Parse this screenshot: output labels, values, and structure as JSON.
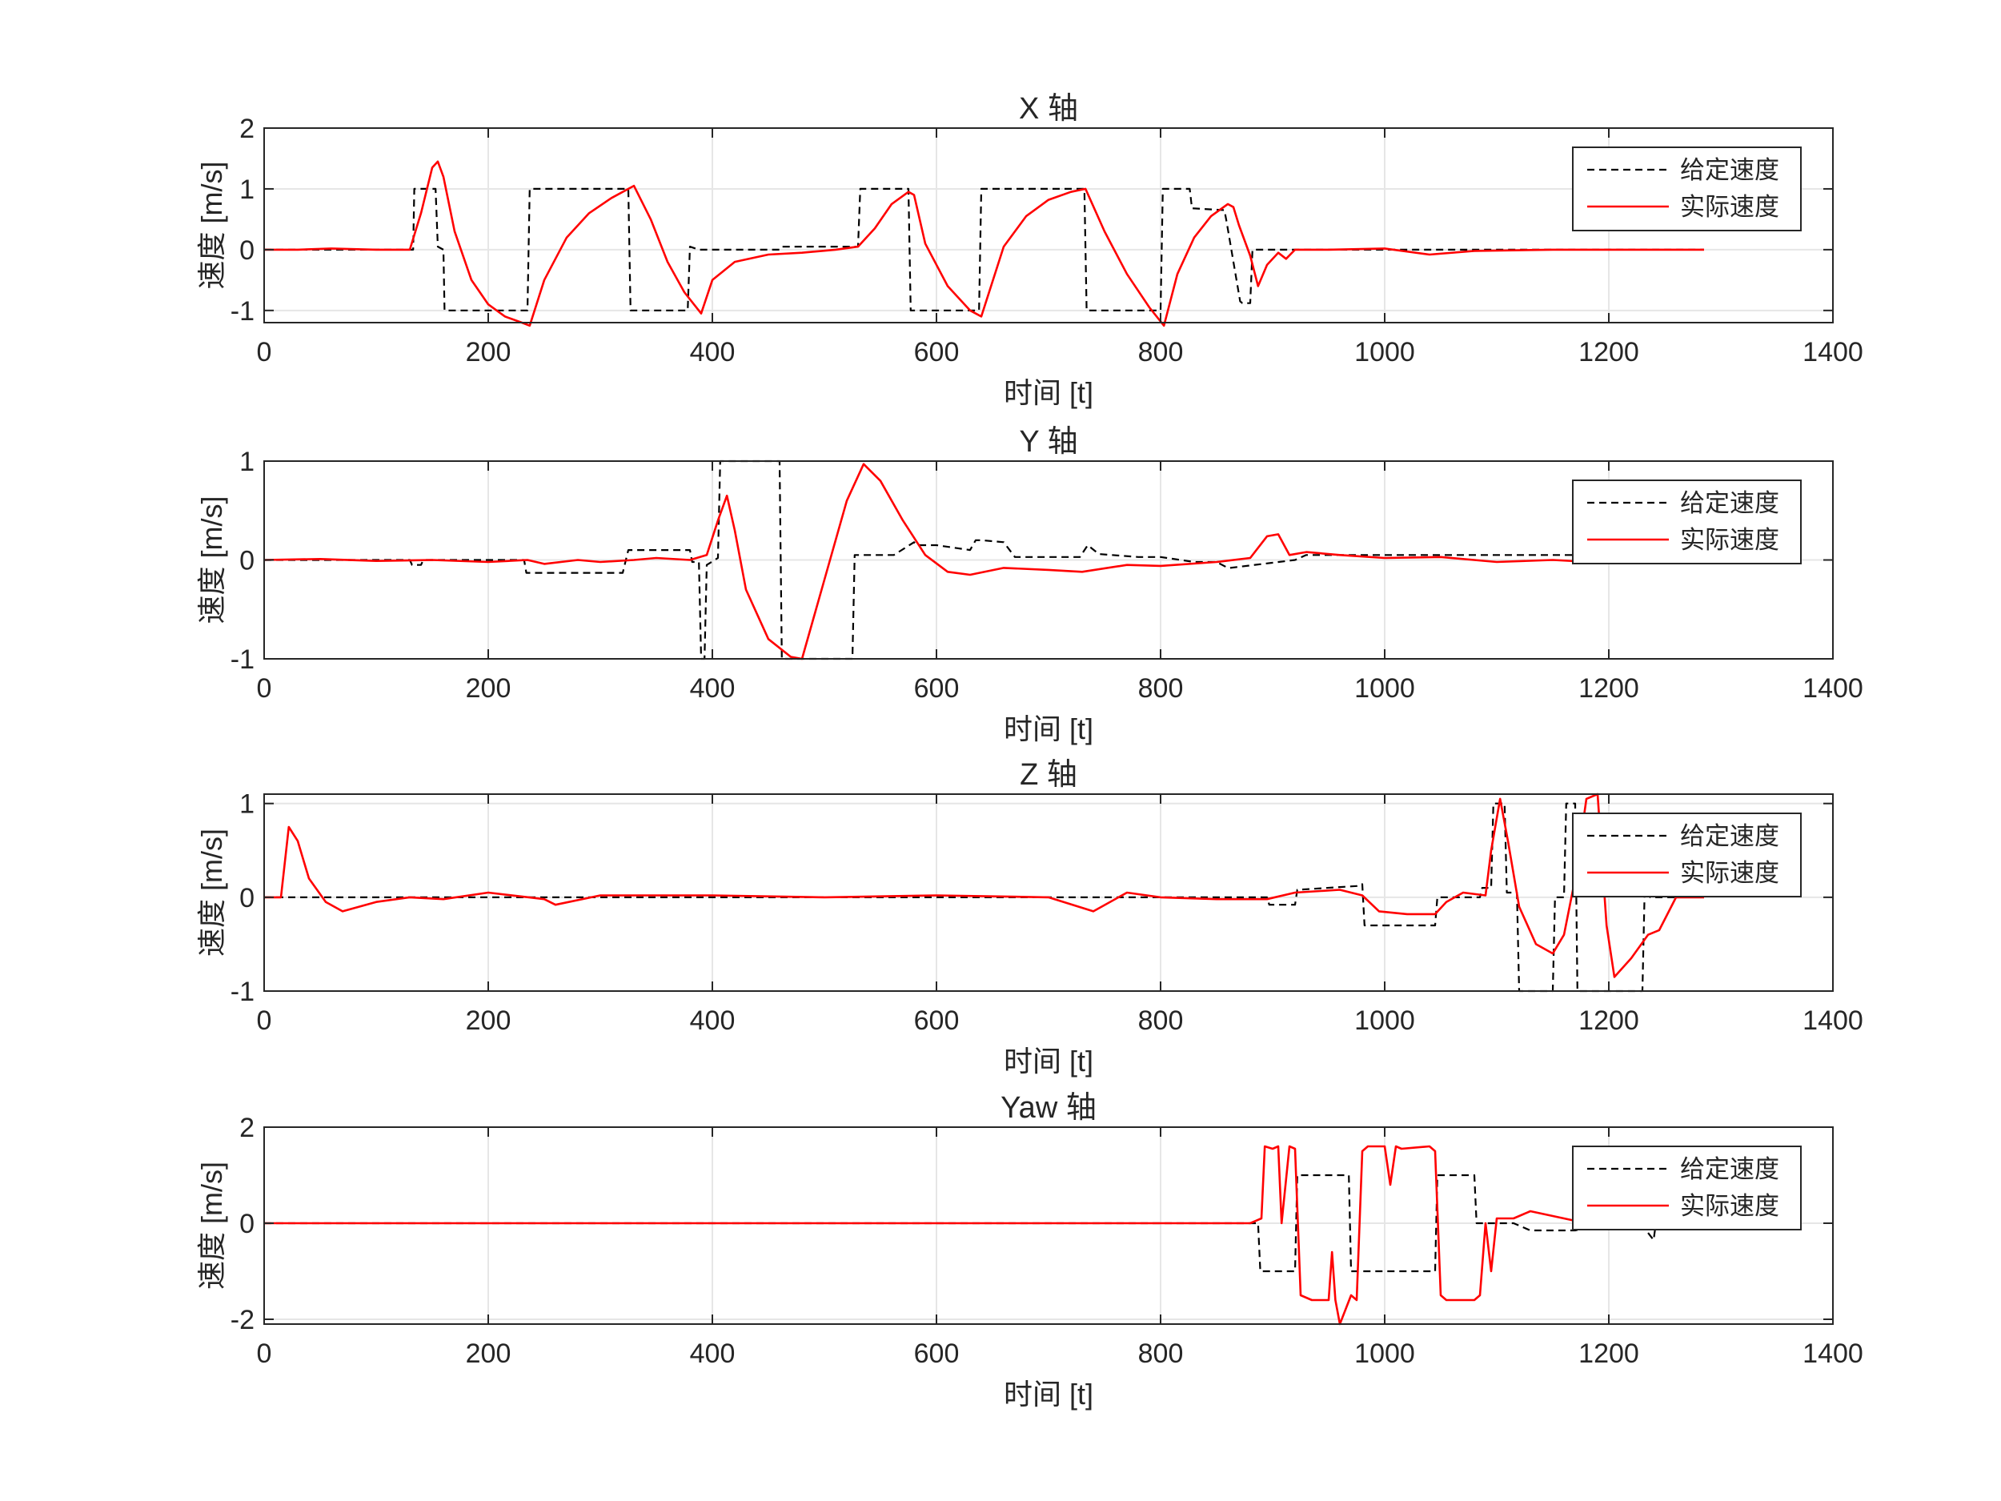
{
  "colors": {
    "reference": "#000000",
    "actual": "#ff0000",
    "grid": "#e6e6e6",
    "axes": "#262626",
    "background": "#ffffff"
  },
  "chart_data": [
    {
      "type": "line",
      "title": "X 轴",
      "xlabel": "时间 [t]",
      "ylabel": "速度 [m/s]",
      "xlim": [
        0,
        1400
      ],
      "ylim": [
        -1.2,
        2
      ],
      "xticks": [
        0,
        200,
        400,
        600,
        800,
        1000,
        1200,
        1400
      ],
      "yticks": [
        -1,
        0,
        1,
        2
      ],
      "grid": true,
      "legend_position": "top-right",
      "series": [
        {
          "name": "给定速度",
          "style": "dashed",
          "x": [
            0,
            133,
            134,
            153,
            155,
            160,
            161,
            235,
            237,
            325,
            327,
            378,
            380,
            388,
            390,
            460,
            462,
            530,
            532,
            575,
            577,
            638,
            640,
            732,
            734,
            800,
            802,
            826,
            828,
            857,
            859,
            871,
            873,
            880,
            882,
            1285
          ],
          "y": [
            0,
            0,
            1,
            1,
            0.05,
            0,
            -1,
            -1,
            1,
            1,
            -1,
            -1,
            0.05,
            0,
            0,
            0,
            0.05,
            0.05,
            1,
            1,
            -1,
            -1,
            1,
            1,
            -1,
            -1,
            1,
            1,
            0.68,
            0.65,
            0.45,
            -0.85,
            -0.88,
            -0.88,
            0,
            0
          ]
        },
        {
          "name": "实际速度",
          "style": "solid",
          "x": [
            0,
            30,
            60,
            100,
            130,
            140,
            150,
            155,
            160,
            170,
            185,
            200,
            215,
            230,
            237,
            250,
            270,
            290,
            310,
            330,
            345,
            360,
            375,
            390,
            400,
            420,
            450,
            480,
            510,
            530,
            545,
            560,
            575,
            580,
            590,
            610,
            630,
            640,
            660,
            680,
            700,
            720,
            733,
            750,
            770,
            790,
            803,
            815,
            830,
            845,
            860,
            865,
            870,
            880,
            887,
            895,
            905,
            912,
            920,
            950,
            1000,
            1040,
            1080,
            1150,
            1200,
            1285
          ],
          "y": [
            0,
            0,
            0.02,
            0,
            0,
            0.6,
            1.35,
            1.45,
            1.2,
            0.3,
            -0.5,
            -0.9,
            -1.1,
            -1.2,
            -1.25,
            -0.5,
            0.2,
            0.6,
            0.85,
            1.05,
            0.5,
            -0.2,
            -0.7,
            -1.05,
            -0.5,
            -0.2,
            -0.08,
            -0.05,
            0,
            0.05,
            0.35,
            0.75,
            0.95,
            0.9,
            0.1,
            -0.6,
            -1.0,
            -1.1,
            0.05,
            0.55,
            0.82,
            0.95,
            1.0,
            0.3,
            -0.4,
            -0.95,
            -1.25,
            -0.4,
            0.2,
            0.55,
            0.75,
            0.7,
            0.4,
            -0.1,
            -0.6,
            -0.25,
            -0.05,
            -0.15,
            0,
            0,
            0.02,
            -0.08,
            -0.02,
            0,
            0,
            0
          ]
        }
      ]
    },
    {
      "type": "line",
      "title": "Y 轴",
      "xlabel": "时间 [t]",
      "ylabel": "速度 [m/s]",
      "xlim": [
        0,
        1400
      ],
      "ylim": [
        -1,
        1
      ],
      "xticks": [
        0,
        200,
        400,
        600,
        800,
        1000,
        1200,
        1400
      ],
      "yticks": [
        -1,
        0,
        1
      ],
      "grid": true,
      "legend_position": "top-right",
      "series": [
        {
          "name": "给定速度",
          "style": "dashed",
          "x": [
            0,
            130,
            132,
            140,
            142,
            232,
            234,
            320,
            325,
            380,
            382,
            388,
            390,
            393,
            395,
            405,
            407,
            460,
            462,
            525,
            527,
            560,
            562,
            580,
            583,
            600,
            630,
            635,
            640,
            660,
            670,
            700,
            728,
            735,
            745,
            780,
            800,
            830,
            850,
            860,
            862,
            920,
            930,
            1285
          ],
          "y": [
            0,
            0,
            -0.05,
            -0.05,
            0,
            0,
            -0.13,
            -0.13,
            0.1,
            0.1,
            -0.02,
            -0.02,
            -1,
            -1,
            -0.05,
            0.02,
            1,
            1,
            -1,
            -1,
            0.05,
            0.05,
            0.05,
            0.18,
            0.15,
            0.15,
            0.1,
            0.2,
            0.2,
            0.18,
            0.03,
            0.03,
            0.03,
            0.15,
            0.06,
            0.03,
            0.03,
            -0.02,
            -0.02,
            -0.08,
            -0.08,
            0,
            0.05,
            0.05
          ]
        },
        {
          "name": "实际速度",
          "style": "solid",
          "x": [
            0,
            50,
            100,
            150,
            200,
            235,
            250,
            280,
            300,
            330,
            350,
            380,
            395,
            405,
            413,
            420,
            430,
            450,
            470,
            480,
            500,
            520,
            535,
            550,
            570,
            590,
            610,
            630,
            660,
            700,
            730,
            770,
            800,
            850,
            880,
            895,
            905,
            915,
            930,
            960,
            1000,
            1050,
            1100,
            1150,
            1200,
            1250,
            1285
          ],
          "y": [
            0,
            0.01,
            -0.01,
            0,
            -0.02,
            0,
            -0.04,
            0,
            -0.02,
            0,
            0.02,
            0,
            0.05,
            0.4,
            0.65,
            0.3,
            -0.3,
            -0.8,
            -0.98,
            -1.0,
            -0.2,
            0.6,
            0.97,
            0.8,
            0.4,
            0.05,
            -0.12,
            -0.15,
            -0.08,
            -0.1,
            -0.12,
            -0.05,
            -0.06,
            -0.02,
            0.02,
            0.24,
            0.26,
            0.05,
            0.08,
            0.05,
            0.02,
            0.03,
            -0.02,
            0,
            -0.03,
            -0.02,
            0
          ]
        }
      ]
    },
    {
      "type": "line",
      "title": "Z 轴",
      "xlabel": "时间 [t]",
      "ylabel": "速度 [m/s]",
      "xlim": [
        0,
        1400
      ],
      "ylim": [
        -1,
        1.1
      ],
      "xticks": [
        0,
        200,
        400,
        600,
        800,
        1000,
        1200,
        1400
      ],
      "yticks": [
        -1,
        0,
        1
      ],
      "grid": true,
      "legend_position": "top-right",
      "series": [
        {
          "name": "给定速度",
          "style": "dashed",
          "x": [
            0,
            895,
            897,
            920,
            922,
            975,
            977,
            980,
            982,
            1045,
            1047,
            1058,
            1060,
            1085,
            1087,
            1095,
            1097,
            1107,
            1109,
            1118,
            1120,
            1150,
            1152,
            1160,
            1162,
            1170,
            1172,
            1230,
            1232,
            1235,
            1237,
            1285
          ],
          "y": [
            0,
            0,
            -0.08,
            -0.08,
            0.08,
            0.12,
            0.14,
            0.14,
            -0.3,
            -0.3,
            0,
            0,
            0,
            0,
            0.1,
            0.1,
            1,
            1,
            0.05,
            0.05,
            -1,
            -1,
            0,
            0,
            1,
            1,
            -1,
            -1,
            0.08,
            0.08,
            0,
            0
          ]
        },
        {
          "name": "实际速度",
          "style": "solid",
          "x": [
            0,
            15,
            22,
            30,
            40,
            55,
            70,
            100,
            130,
            160,
            200,
            250,
            260,
            300,
            400,
            500,
            600,
            700,
            740,
            770,
            800,
            850,
            895,
            920,
            960,
            980,
            995,
            1020,
            1045,
            1055,
            1070,
            1090,
            1095,
            1103,
            1110,
            1120,
            1135,
            1150,
            1160,
            1170,
            1180,
            1190,
            1198,
            1205,
            1220,
            1235,
            1245,
            1260,
            1285
          ],
          "y": [
            0,
            0,
            0.75,
            0.6,
            0.2,
            -0.05,
            -0.15,
            -0.05,
            0,
            -0.02,
            0.05,
            -0.02,
            -0.08,
            0.02,
            0.02,
            0,
            0.02,
            0,
            -0.15,
            0.05,
            0,
            -0.02,
            -0.02,
            0.05,
            0.08,
            0.02,
            -0.15,
            -0.18,
            -0.18,
            -0.05,
            0.05,
            0.02,
            0.5,
            1.05,
            0.6,
            -0.1,
            -0.5,
            -0.6,
            -0.4,
            0.2,
            1.05,
            1.1,
            -0.3,
            -0.85,
            -0.65,
            -0.4,
            -0.35,
            0,
            0
          ]
        }
      ]
    },
    {
      "type": "line",
      "title": "Yaw 轴",
      "xlabel": "时间 [t]",
      "ylabel": "速度 [m/s]",
      "xlim": [
        0,
        1400
      ],
      "ylim": [
        -2.1,
        2
      ],
      "xticks": [
        0,
        200,
        400,
        600,
        800,
        1000,
        1200,
        1400
      ],
      "yticks": [
        -2,
        0,
        2
      ],
      "grid": true,
      "legend_position": "top-right",
      "series": [
        {
          "name": "给定速度",
          "style": "dashed",
          "x": [
            0,
            887,
            889,
            920,
            922,
            968,
            970,
            1045,
            1047,
            1080,
            1082,
            1115,
            1130,
            1170,
            1200,
            1230,
            1235,
            1240,
            1242,
            1285
          ],
          "y": [
            0,
            0,
            -1,
            -1,
            1,
            1,
            -1,
            -1,
            1,
            1,
            0,
            0,
            -0.15,
            -0.15,
            0,
            0,
            -0.2,
            -0.35,
            0,
            0
          ]
        },
        {
          "name": "实际速度",
          "style": "solid",
          "x": [
            0,
            880,
            890,
            893,
            900,
            905,
            908,
            915,
            920,
            925,
            930,
            935,
            950,
            953,
            956,
            960,
            970,
            975,
            980,
            985,
            1000,
            1005,
            1010,
            1015,
            1040,
            1045,
            1050,
            1055,
            1080,
            1085,
            1090,
            1095,
            1100,
            1115,
            1130,
            1150,
            1170,
            1200,
            1230,
            1285
          ],
          "y": [
            0,
            0,
            0.1,
            1.6,
            1.55,
            1.6,
            0,
            1.6,
            1.55,
            -1.5,
            -1.55,
            -1.6,
            -1.6,
            -0.6,
            -1.6,
            -2.1,
            -1.5,
            -1.6,
            1.5,
            1.6,
            1.6,
            0.8,
            1.6,
            1.55,
            1.6,
            1.5,
            -1.5,
            -1.6,
            -1.6,
            -1.5,
            0,
            -1.0,
            0.1,
            0.1,
            0.25,
            0.15,
            0.05,
            0.05,
            -0.05,
            0
          ]
        }
      ]
    }
  ]
}
